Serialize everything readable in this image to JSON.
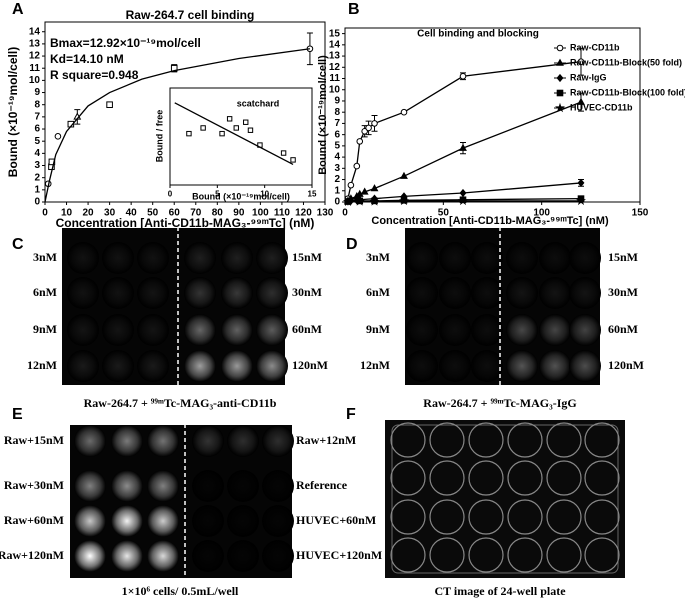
{
  "chart_data": [
    {
      "type": "scatter",
      "panel_label": "A",
      "title": "Raw-264.7 cell binding",
      "x_label": "Concentration [Anti-CD11b-MAG₃-⁹⁹ᵐTc] (nM)",
      "y_label": "Bound (×10⁻¹⁹mol/cell)",
      "annotations": [
        "Bmax=12.92×10⁻¹⁹mol/cell",
        "Kd=14.10 nM",
        "R square=0.948"
      ],
      "xlim": [
        0,
        130
      ],
      "ylim": [
        0,
        14.8
      ],
      "xticks": [
        0,
        10,
        20,
        30,
        40,
        50,
        60,
        70,
        80,
        90,
        100,
        110,
        120,
        130
      ],
      "yticks": [
        0,
        1,
        2,
        3,
        4,
        5,
        6,
        7,
        8,
        9,
        10,
        11,
        12,
        13,
        14
      ],
      "series": [
        {
          "color": "#000000",
          "line": false,
          "filled": false,
          "markers": [
            "circle",
            "square",
            "square",
            "circle",
            "square",
            "triangle",
            "square",
            "square",
            "circle"
          ],
          "x": [
            1.5,
            3,
            3.2,
            6,
            12,
            15,
            30,
            60,
            123
          ],
          "values": [
            1.5,
            2.9,
            3.3,
            5.4,
            6.4,
            7.0,
            8.0,
            11.0,
            12.6
          ],
          "errors": [
            null,
            null,
            null,
            null,
            null,
            0.6,
            null,
            0.3,
            1.3
          ]
        },
        {
          "color": "#000000",
          "line": true,
          "x": [
            0,
            2,
            5,
            10,
            20,
            30,
            45,
            60,
            90,
            123
          ],
          "values": [
            0,
            1.7,
            3.9,
            5.8,
            7.9,
            9.0,
            10.1,
            10.8,
            11.8,
            12.6
          ]
        }
      ]
    },
    {
      "type": "scatter",
      "title": "scatchard",
      "x_label": "Bound (×10⁻¹⁹mol/cell)",
      "y_label": "Bound / free",
      "xlim": [
        0,
        15
      ],
      "ylim": [
        0,
        0.85
      ],
      "xticks": [
        0,
        5,
        10,
        15
      ],
      "series": [
        {
          "color": "#000000",
          "line": false,
          "filled": false,
          "marker": "square",
          "x": [
            2,
            3.5,
            5.5,
            6.3,
            7,
            8,
            8.5,
            9.5,
            12,
            13
          ],
          "values": [
            0.45,
            0.5,
            0.45,
            0.58,
            0.5,
            0.55,
            0.48,
            0.35,
            0.28,
            0.22
          ]
        },
        {
          "color": "#000000",
          "line": true,
          "x": [
            0.5,
            13
          ],
          "values": [
            0.72,
            0.18
          ]
        }
      ]
    },
    {
      "type": "line",
      "panel_label": "B",
      "title": "Cell binding and blocking",
      "x_label": "Concentration [Anti-CD11b-MAG₃-⁹⁹ᵐTc] (nM)",
      "y_label": "Bound (×10⁻¹⁹mol/cell)",
      "xlim": [
        0,
        150
      ],
      "ylim": [
        0,
        15.5
      ],
      "xticks": [
        0,
        50,
        100,
        150
      ],
      "yticks": [
        0,
        1,
        2,
        3,
        4,
        5,
        6,
        7,
        8,
        9,
        10,
        11,
        12,
        13,
        14,
        15
      ],
      "series": [
        {
          "name": "Raw-CD11b",
          "color": "#000000",
          "line": true,
          "marker": "circle",
          "filled": false,
          "x": [
            1.5,
            3,
            6,
            7.5,
            10,
            12,
            15,
            30,
            60,
            120
          ],
          "values": [
            0.3,
            1.5,
            3.2,
            5.4,
            6.3,
            6.6,
            7.0,
            8.0,
            11.2,
            12.5
          ],
          "errors": [
            null,
            null,
            null,
            null,
            0.5,
            0.6,
            0.7,
            null,
            0.3,
            1.2
          ]
        },
        {
          "name": "Raw-CD11b-Block(50 fold)",
          "color": "#000000",
          "line": true,
          "marker": "triangle",
          "filled": true,
          "x": [
            1.5,
            3,
            6,
            7.5,
            10,
            15,
            30,
            60,
            120
          ],
          "values": [
            0.1,
            0.3,
            0.5,
            0.7,
            0.9,
            1.2,
            2.3,
            4.8,
            8.9
          ],
          "errors": [
            null,
            null,
            null,
            null,
            null,
            null,
            null,
            0.5,
            0.8
          ]
        },
        {
          "name": "Raw-IgG",
          "color": "#000000",
          "line": true,
          "marker": "diamond",
          "filled": true,
          "x": [
            1.5,
            3,
            6,
            7.5,
            15,
            30,
            60,
            120
          ],
          "values": [
            0.05,
            0.1,
            0.15,
            0.2,
            0.3,
            0.5,
            0.8,
            1.7
          ],
          "errors": [
            null,
            null,
            null,
            null,
            null,
            null,
            null,
            0.3
          ]
        },
        {
          "name": "Raw-CD11b-Block(100 fold)",
          "color": "#000000",
          "line": true,
          "marker": "square",
          "filled": true,
          "x": [
            1.5,
            7.5,
            15,
            30,
            60,
            120
          ],
          "values": [
            0.05,
            0.1,
            0.1,
            0.15,
            0.2,
            0.3
          ]
        },
        {
          "name": "HUVEC-CD11b",
          "color": "#000000",
          "line": true,
          "marker": "star",
          "filled": true,
          "x": [
            1.5,
            7.5,
            15,
            30,
            60,
            120
          ],
          "values": [
            0.02,
            0.05,
            0.05,
            0.1,
            0.1,
            0.1
          ]
        }
      ]
    }
  ],
  "panels": {
    "C": {
      "label": "C",
      "left_labels": [
        "3nM",
        "6nM",
        "9nM",
        "12nM"
      ],
      "right_labels": [
        "15nM",
        "30nM",
        "60nM",
        "120nM"
      ],
      "caption": "Raw-264.7 + ⁹⁹ᵐTc-MAG₃-anti-CD11b"
    },
    "D": {
      "label": "D",
      "left_labels": [
        "3nM",
        "6nM",
        "9nM",
        "12nM"
      ],
      "right_labels": [
        "15nM",
        "30nM",
        "60nM",
        "120nM"
      ],
      "caption": "Raw-264.7 + ⁹⁹ᵐTc-MAG₃-IgG"
    },
    "E": {
      "label": "E",
      "left_labels": [
        "Raw+15nM",
        "Raw+30nM",
        "Raw+60nM",
        "Raw+120nM"
      ],
      "right_labels": [
        "Raw+12nM",
        "Reference",
        "HUVEC+60nM",
        "HUVEC+120nM"
      ],
      "caption": "1×10⁶ cells/ 0.5mL/well"
    },
    "F": {
      "label": "F",
      "caption": "CT image of 24-well plate"
    }
  }
}
